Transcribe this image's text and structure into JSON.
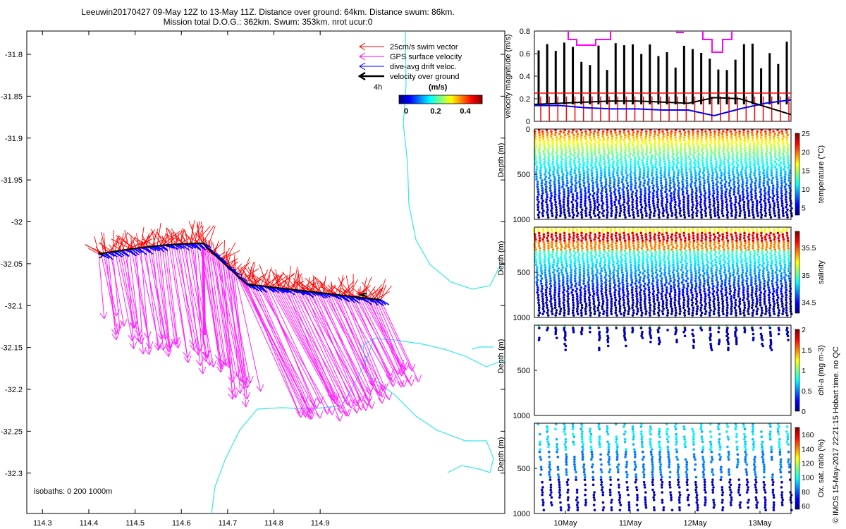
{
  "title": {
    "line1": "Leeuwin20170427 09-May 12Z to 13-May 11Z. Distance over ground: 64km. Distance swum: 86km.",
    "line2": "Mission total D.O.G.: 362km. Swum: 353km. nrot ucur:0"
  },
  "credit": "© IMOS 15-May-2017 22:21:15 Hobart time. no QC",
  "map": {
    "x_ticks": [
      "114.3",
      "114.4",
      "114.5",
      "114.6",
      "114.7",
      "114.8",
      "114.9"
    ],
    "y_ticks": [
      "-31.8",
      "-31.85",
      "-31.9",
      "-31.95",
      "-32",
      "-32.05",
      "-32.1",
      "-32.15",
      "-32.2",
      "-32.25",
      "-32.3"
    ],
    "isobath_label": "isobaths: 0   200  1000m",
    "legend": [
      {
        "label": "25cm/s swim vector",
        "color": "#ff0000"
      },
      {
        "label": "GPS surface velocity",
        "color": "#ff00ff"
      },
      {
        "label": "dive-avg drift veloc.",
        "color": "#0000ff"
      },
      {
        "label": "velocity over ground",
        "color": "#000000"
      }
    ],
    "legend_time": "4h",
    "colorbar_title": "(m/s)",
    "colorbar_ticks": [
      "0",
      "0.2",
      "0.4"
    ]
  },
  "chart_data": [
    {
      "type": "line",
      "title": "",
      "xlabel": "",
      "ylabel": "velocity magnitude (m/s)",
      "ylim": [
        0,
        0.8
      ],
      "y_ticks": [
        "0",
        "0.2",
        "0.4",
        "0.6",
        "0.8"
      ],
      "series": [
        {
          "name": "",
          "color": "#ff0000",
          "values_note": ""
        },
        {
          "name": "",
          "color": "#0000ff"
        },
        {
          "name": "",
          "color": "#000000"
        },
        {
          "name": "",
          "color": "#ff00ff"
        }
      ],
      "red_level": 0.25,
      "black_trend": [
        0.15,
        0.16,
        0.17,
        0.18,
        0.18,
        0.17,
        0.16,
        0.21,
        0.2,
        0.13,
        0.06
      ],
      "blue_trend": [
        0.14,
        0.14,
        0.12,
        0.11,
        0.11,
        0.1,
        0.1,
        0.05,
        0.11,
        0.16,
        0.19
      ]
    },
    {
      "type": "scatter",
      "ylabel": "Depth (m)",
      "ylim": [
        0,
        1000
      ],
      "y_ticks": [
        "0",
        "500",
        "1000"
      ],
      "colorbar_label": "temperature (°C)",
      "colorbar_ticks": [
        "5",
        "10",
        "15",
        "20",
        "25"
      ],
      "clim": [
        3,
        25
      ]
    },
    {
      "type": "scatter",
      "ylabel": "Depth (m)",
      "ylim": [
        0,
        1000
      ],
      "y_ticks": [
        "500",
        "1000"
      ],
      "colorbar_label": "salinity",
      "colorbar_ticks": [
        "34.5",
        "35",
        "35.5"
      ],
      "clim": [
        34.3,
        35.8
      ]
    },
    {
      "type": "scatter",
      "ylabel": "Depth (m)",
      "ylim": [
        0,
        1000
      ],
      "y_ticks": [
        "500",
        "1000"
      ],
      "colorbar_label": "chl-a (mg m-3)",
      "colorbar_ticks": [
        "0",
        "0.5",
        "1",
        "1.5",
        "2"
      ],
      "clim": [
        0,
        2
      ]
    },
    {
      "type": "scatter",
      "ylabel": "Depth (m)",
      "ylim": [
        0,
        1000
      ],
      "y_ticks": [
        "500",
        "1000"
      ],
      "x_ticks": [
        "10May",
        "11May",
        "12May",
        "13May"
      ],
      "colorbar_label": "Ox. sat. ratio (%)",
      "colorbar_ticks": [
        "60",
        "80",
        "100",
        "120",
        "140",
        "160"
      ],
      "clim": [
        55,
        170
      ]
    }
  ]
}
